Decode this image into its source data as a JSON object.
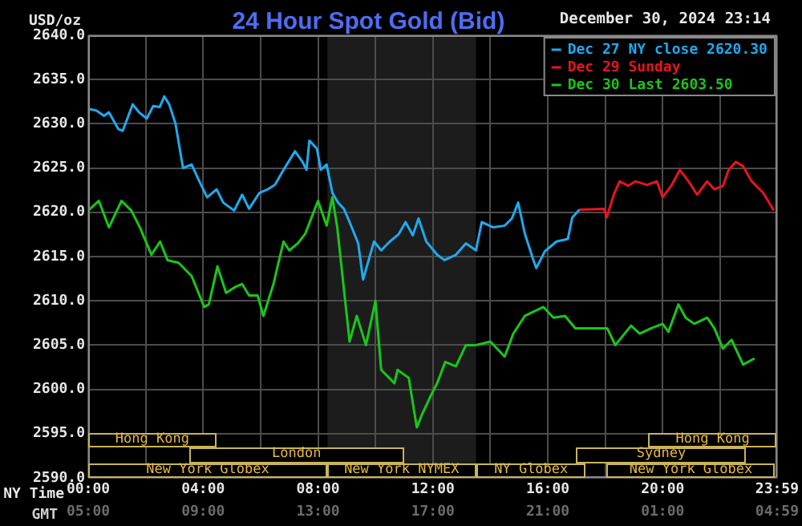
{
  "chart_data": {
    "type": "line",
    "title": "24 Hour Spot Gold (Bid)",
    "ylabel": "USD/oz",
    "xlabel": "NY Time",
    "x2label": "GMT",
    "annotations": [
      "December 30, 2024 23:14",
      "New York Globex",
      "New York NYMEX",
      "NY Globex",
      "New York Globex",
      "London",
      "Sydney",
      "Hong Kong",
      "Hong Kong"
    ],
    "xlim": [
      0,
      23.983
    ],
    "xticks": [
      {
        "value": 0,
        "label": "00:00"
      },
      {
        "value": 2,
        "label": null
      },
      {
        "value": 4,
        "label": "04:00"
      },
      {
        "value": 6,
        "label": null
      },
      {
        "value": 8,
        "label": "08:00"
      },
      {
        "value": 10,
        "label": null
      },
      {
        "value": 12,
        "label": "12:00"
      },
      {
        "value": 14,
        "label": null
      },
      {
        "value": 16,
        "label": "16:00"
      },
      {
        "value": 18,
        "label": null
      },
      {
        "value": 20,
        "label": "20:00"
      },
      {
        "value": 22,
        "label": null
      },
      {
        "value": 23.983,
        "label": "23:59"
      }
    ],
    "x2lim": [
      "2024-12-30T05:00",
      "2024-12-31T04:59"
    ],
    "x2ticks": [
      {
        "value": "2024-12-30T05:00",
        "label": "05:00"
      },
      {
        "value": "2024-12-30T09:00",
        "label": "09:00"
      },
      {
        "value": "2024-12-30T13:00",
        "label": "13:00"
      },
      {
        "value": "2024-12-30T17:00",
        "label": "17:00"
      },
      {
        "value": "2024-12-30T21:00",
        "label": "21:00"
      },
      {
        "value": "2024-12-31T01:00",
        "label": "01:00"
      },
      {
        "value": "2024-12-31T04:59",
        "label": "04:59"
      }
    ],
    "ylim": [
      2590,
      2640
    ],
    "yticks": [
      {
        "value": 2590,
        "label": "2590.0"
      },
      {
        "value": 2595,
        "label": "2595.0"
      },
      {
        "value": 2600,
        "label": "2600.0"
      },
      {
        "value": 2605,
        "label": "2605.0"
      },
      {
        "value": 2610,
        "label": "2610.0"
      },
      {
        "value": 2615,
        "label": "2615.0"
      },
      {
        "value": 2620,
        "label": "2620.0"
      },
      {
        "value": 2625,
        "label": "2625.0"
      },
      {
        "value": 2630,
        "label": "2630.0"
      },
      {
        "value": 2635,
        "label": "2635.0"
      },
      {
        "value": 2640,
        "label": "2640.0"
      }
    ],
    "grid": true,
    "legend": "top right",
    "marker": "none",
    "line_style": "solid",
    "bands": [
      {
        "axis": "x",
        "from": 8.33,
        "to": 13.5,
        "color": "#1c1c1c"
      }
    ],
    "series": [
      {
        "name": "Dec 27 NY close 2620.30",
        "color": "#1eaaf0",
        "x": [
          0,
          0.28,
          0.55,
          0.72,
          1.05,
          1.2,
          1.55,
          1.77,
          2.04,
          2.26,
          2.49,
          2.65,
          2.82,
          3.04,
          3.3,
          3.6,
          3.87,
          4.14,
          4.47,
          4.7,
          5.08,
          5.36,
          5.6,
          5.96,
          6.25,
          6.5,
          6.8,
          7.2,
          7.46,
          7.6,
          7.7,
          7.96,
          8.1,
          8.3,
          8.5,
          8.7,
          8.9,
          9.1,
          9.4,
          9.57,
          9.95,
          10.2,
          10.5,
          10.8,
          11.05,
          11.3,
          11.5,
          11.77,
          12.15,
          12.4,
          12.8,
          13.15,
          13.5,
          13.7,
          14.1,
          14.5,
          14.75,
          14.97,
          15.2,
          15.5,
          15.6,
          15.9,
          16.3,
          16.7,
          16.85,
          17.1
        ],
        "values": [
          2631.7,
          2631.5,
          2630.9,
          2631.3,
          2629.4,
          2629.2,
          2632.2,
          2631.3,
          2630.6,
          2632,
          2631.9,
          2633.1,
          2632.2,
          2630,
          2625,
          2625.4,
          2623.5,
          2621.7,
          2622.6,
          2621.1,
          2620.2,
          2622,
          2620.4,
          2622.2,
          2622.6,
          2623.1,
          2624.8,
          2626.9,
          2625.7,
          2624.8,
          2628.1,
          2627.2,
          2624.8,
          2625.4,
          2622.2,
          2621.1,
          2620.4,
          2618.9,
          2616.5,
          2612.4,
          2616.7,
          2615.7,
          2616.7,
          2617.5,
          2618.9,
          2617.4,
          2619.3,
          2616.7,
          2615.2,
          2614.6,
          2615.2,
          2616.5,
          2615.7,
          2618.9,
          2618.3,
          2618.5,
          2619.3,
          2621.1,
          2617.6,
          2614.6,
          2613.7,
          2615.6,
          2616.7,
          2617,
          2619.4,
          2620.3
        ]
      },
      {
        "name": "Dec 29 Sunday",
        "color": "#e8141e",
        "x": [
          17.1,
          17.96,
          18.05,
          18.3,
          18.5,
          18.8,
          19.05,
          19.45,
          19.8,
          20,
          20.3,
          20.6,
          20.9,
          21.2,
          21.55,
          21.8,
          22.1,
          22.3,
          22.55,
          22.8,
          23.1,
          23.5,
          23.87
        ],
        "values": [
          2620.3,
          2620.4,
          2619.4,
          2622,
          2623.5,
          2623,
          2623.5,
          2623.1,
          2623.5,
          2621.7,
          2623,
          2624.8,
          2623.5,
          2622,
          2623.5,
          2622.6,
          2623,
          2624.8,
          2625.7,
          2625.2,
          2623.5,
          2622.2,
          2620.2
        ]
      },
      {
        "name": "Dec 30 Last 2603.50",
        "color": "#18c818",
        "x": [
          0,
          0.37,
          0.72,
          1.16,
          1.5,
          1.8,
          2.2,
          2.5,
          2.76,
          3.15,
          3.6,
          4.04,
          4.2,
          4.5,
          4.8,
          5.08,
          5.36,
          5.6,
          5.9,
          6.1,
          6.45,
          6.6,
          6.8,
          7,
          7.3,
          7.56,
          8,
          8.3,
          8.5,
          8.67,
          9.1,
          9.35,
          9.67,
          10,
          10.2,
          10.66,
          10.77,
          11.16,
          11.44,
          11.6,
          11.9,
          12.15,
          12.43,
          12.8,
          13.15,
          13.5,
          14,
          14.5,
          14.8,
          15.2,
          15.85,
          16.2,
          16.6,
          16.96,
          18.07,
          18.35,
          18.9,
          19.2,
          19.6,
          20,
          20.2,
          20.55,
          20.8,
          21.1,
          21.55,
          21.8,
          22.1,
          22.4,
          22.8,
          23.2
        ],
        "values": [
          2620.2,
          2621.3,
          2618.3,
          2621.3,
          2620.2,
          2618.3,
          2615.2,
          2616.7,
          2614.6,
          2614.3,
          2612.8,
          2609.3,
          2609.6,
          2613.9,
          2610.9,
          2611.5,
          2611.9,
          2610.6,
          2610.6,
          2608.3,
          2611.9,
          2614,
          2616.7,
          2615.7,
          2616.5,
          2617.6,
          2621.3,
          2618.5,
          2621.7,
          2618.3,
          2605.4,
          2608.3,
          2605,
          2610,
          2602.2,
          2600.7,
          2602.2,
          2601.3,
          2595.7,
          2597,
          2599.1,
          2600.7,
          2603.1,
          2602.6,
          2605,
          2605,
          2605.4,
          2603.7,
          2606.3,
          2608.3,
          2609.3,
          2608.1,
          2608.3,
          2606.9,
          2606.9,
          2605,
          2607.2,
          2606.3,
          2606.9,
          2607.4,
          2606.5,
          2609.6,
          2608.1,
          2607.4,
          2608.1,
          2606.9,
          2604.6,
          2605.6,
          2602.8,
          2603.5
        ]
      }
    ]
  }
}
